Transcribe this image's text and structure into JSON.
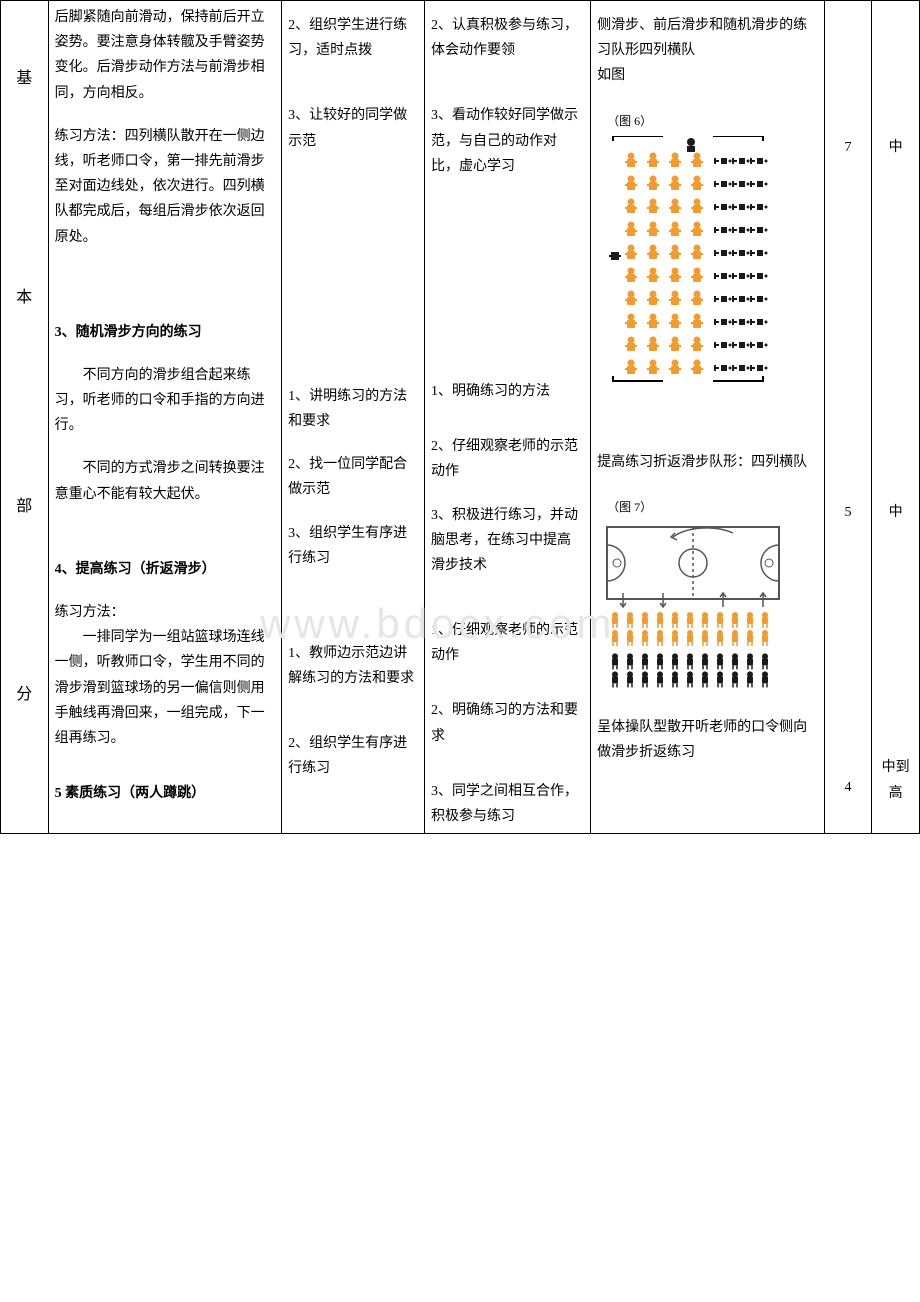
{
  "side_labels": [
    "基",
    "本",
    "部",
    "分"
  ],
  "content": {
    "p1": "后脚紧随向前滑动，保持前后开立姿势。要注意身体转髋及手臂姿势变化。后滑步动作方法与前滑步相同，方向相反。",
    "p2": "练习方法：四列横队散开在一侧边线，听老师口令，第一排先前滑步至对面边线处，依次进行。四列横队都完成后，每组后滑步依次返回原处。",
    "h3": "3、随机滑步方向的练习",
    "p3a": "不同方向的滑步组合起来练习，听老师的口令和手指的方向进行。",
    "p3b": "不同的方式滑步之间转换要注意重心不能有较大起伏。",
    "h4": "4、提高练习（折返滑步）",
    "p4a": "练习方法：",
    "p4b": "一排同学为一组站篮球场连线一侧，听教师口令，学生用不同的滑步滑到篮球场的另一偏信则侧用手触线再滑回来，一组完成，下一组再练习。",
    "h5": "5 素质练习（两人蹲跳）"
  },
  "teacher": {
    "t2": "2、组织学生进行练习，适时点拨",
    "t3": "3、让较好的同学做示范",
    "b1": "1、讲明练习的方法和要求",
    "b2": "2、找一位同学配合做示范",
    "b3": "3、组织学生有序进行练习",
    "c1": "1、教师边示范边讲解练习的方法和要求",
    "c2": "2、组织学生有序进行练习"
  },
  "student": {
    "s2": "2、认真积极参与练习，体会动作要领",
    "s3": "3、看动作较好同学做示范，与自己的动作对比，虚心学习",
    "b1": "1、明确练习的方法",
    "b2": "2、仔细观察老师的示范动作",
    "b3": "3、积极进行练习，并动脑思考，在练习中提高滑步技术",
    "c1": "1、仔细观察老师的示范动作",
    "c2": "2、明确练习的方法和要求",
    "c3": "3、同学之间相互合作，积极参与练习"
  },
  "org": {
    "o1": "侧滑步、前后滑步和随机滑步的练习队形四列横队",
    "o1b": "如图",
    "fig6": "（图 6）",
    "o2": "提高练习折返滑步队形：四列横队",
    "fig7": "（图 7）",
    "o3": "呈体操队型散开听老师的口令侧向做滑步折返练习"
  },
  "time": {
    "t1": "7",
    "t2": "5",
    "t3": "4"
  },
  "intensity": {
    "i1": "中",
    "i2": "中",
    "i3": "中到高"
  },
  "watermark": "www.bdocx.com",
  "diagram6": {
    "rows": 10,
    "persons_per_row": 4,
    "colors": {
      "person": "#f29b2e",
      "dot": "#1a1a1a",
      "border": "#000"
    }
  },
  "diagram7": {
    "rows_orange": 2,
    "rows_black": 2,
    "persons_per_row": 11,
    "colors": {
      "person_orange": "#f29b2e",
      "person_black": "#1a1a1a",
      "court": "#555"
    }
  }
}
